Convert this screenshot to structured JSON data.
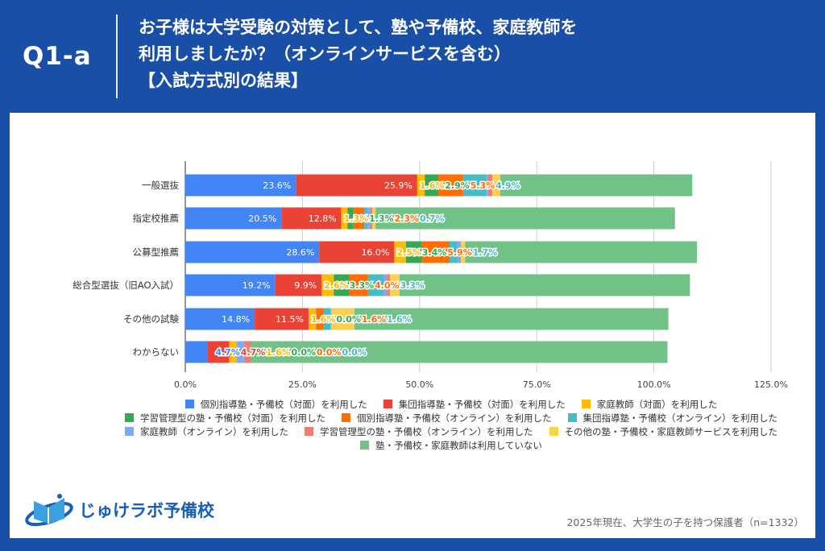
{
  "header": {
    "question_id": "Q1-a",
    "title_lines": [
      "お子様は大学受験の対策として、塾や予備校、家庭教師を",
      "利用しましたか？（オンラインサービスを含む）",
      "【入試方式別の結果】"
    ]
  },
  "chart_data": {
    "type": "bar",
    "orientation": "horizontal",
    "stacked": true,
    "categories": [
      "一般選抜",
      "指定校推薦",
      "公募型推薦",
      "総合型選抜（旧AO入試）",
      "その他の試験",
      "わからない"
    ],
    "xlim": [
      0,
      125
    ],
    "x_ticks": [
      "0.0%",
      "25.0%",
      "50.0%",
      "75.0%",
      "100.0%",
      "125.0%"
    ],
    "grid": true,
    "legend_position": "bottom",
    "series": [
      {
        "name": "個別指導塾・予備校（対面）を利用した",
        "color": "#4285f4",
        "values": [
          23.6,
          20.5,
          28.6,
          19.2,
          14.8,
          4.7
        ],
        "labels": [
          "23.6%",
          "20.5%",
          "28.6%",
          "19.2%",
          "14.8%",
          "4.7%"
        ]
      },
      {
        "name": "集団指導塾・予備校（対面）を利用した",
        "color": "#ea4335",
        "values": [
          25.9,
          12.8,
          16.0,
          9.9,
          11.5,
          4.7
        ],
        "labels": [
          "25.9%",
          "12.8%",
          "16.0%",
          "9.9%",
          "11.5%",
          "4.7%"
        ]
      },
      {
        "name": "家庭教師（対面）を利用した",
        "color": "#fbbc04",
        "values": [
          1.6,
          1.3,
          2.5,
          2.6,
          1.6,
          1.6
        ],
        "labels": [
          "1.6%",
          "1.3%",
          "2.5%",
          "2.6%",
          "1.6%",
          "1.6%"
        ]
      },
      {
        "name": "学習管理型の塾・予備校（対面）を利用した",
        "color": "#34a853",
        "values": [
          2.9,
          1.3,
          3.4,
          3.3,
          0.0,
          0.0
        ],
        "labels": [
          "2.9%",
          "1.3%",
          "3.4%",
          "3.3%",
          "0.0%",
          "0.0%"
        ]
      },
      {
        "name": "個別指導塾・予備校（オンライン）を利用した",
        "color": "#ff6d01",
        "values": [
          5.3,
          2.3,
          5.9,
          4.0,
          1.6,
          0.0
        ],
        "labels": [
          "5.3%",
          "2.3%",
          "5.9%",
          "4.0%",
          "1.6%",
          "0.0%"
        ]
      },
      {
        "name": "集団指導塾・予備校（オンライン）を利用した",
        "color": "#46bdc6",
        "values": [
          4.9,
          0.7,
          1.7,
          3.3,
          1.6,
          0.0
        ],
        "labels": [
          "4.9%",
          "0.7%",
          "1.7%",
          "3.3%",
          "1.6%",
          "0.0%"
        ]
      },
      {
        "name": "家庭教師（オンライン）を利用した",
        "color": "#7baaf7",
        "values": [
          0.3,
          0.5,
          0.7,
          0.7,
          0.0,
          1.5
        ]
      },
      {
        "name": "学習管理型の塾・予備校（オンライン）を利用した",
        "color": "#f07b72",
        "values": [
          1.0,
          0.5,
          0.0,
          0.7,
          0.0,
          1.6
        ]
      },
      {
        "name": "その他の塾・予備校・家庭教師サービスを利用した",
        "color": "#fcd04f",
        "values": [
          1.7,
          0.7,
          0.9,
          2.0,
          5.0,
          0.0
        ]
      },
      {
        "name": "塾・予備校・家庭教師は利用していない",
        "color": "#71c287",
        "values": [
          41.0,
          63.9,
          49.5,
          62.0,
          67.0,
          88.8
        ]
      }
    ]
  },
  "logo": {
    "text": "じゅけラボ予備校"
  },
  "source": "2025年現在、大学生の子を持つ保護者（n=1332）"
}
